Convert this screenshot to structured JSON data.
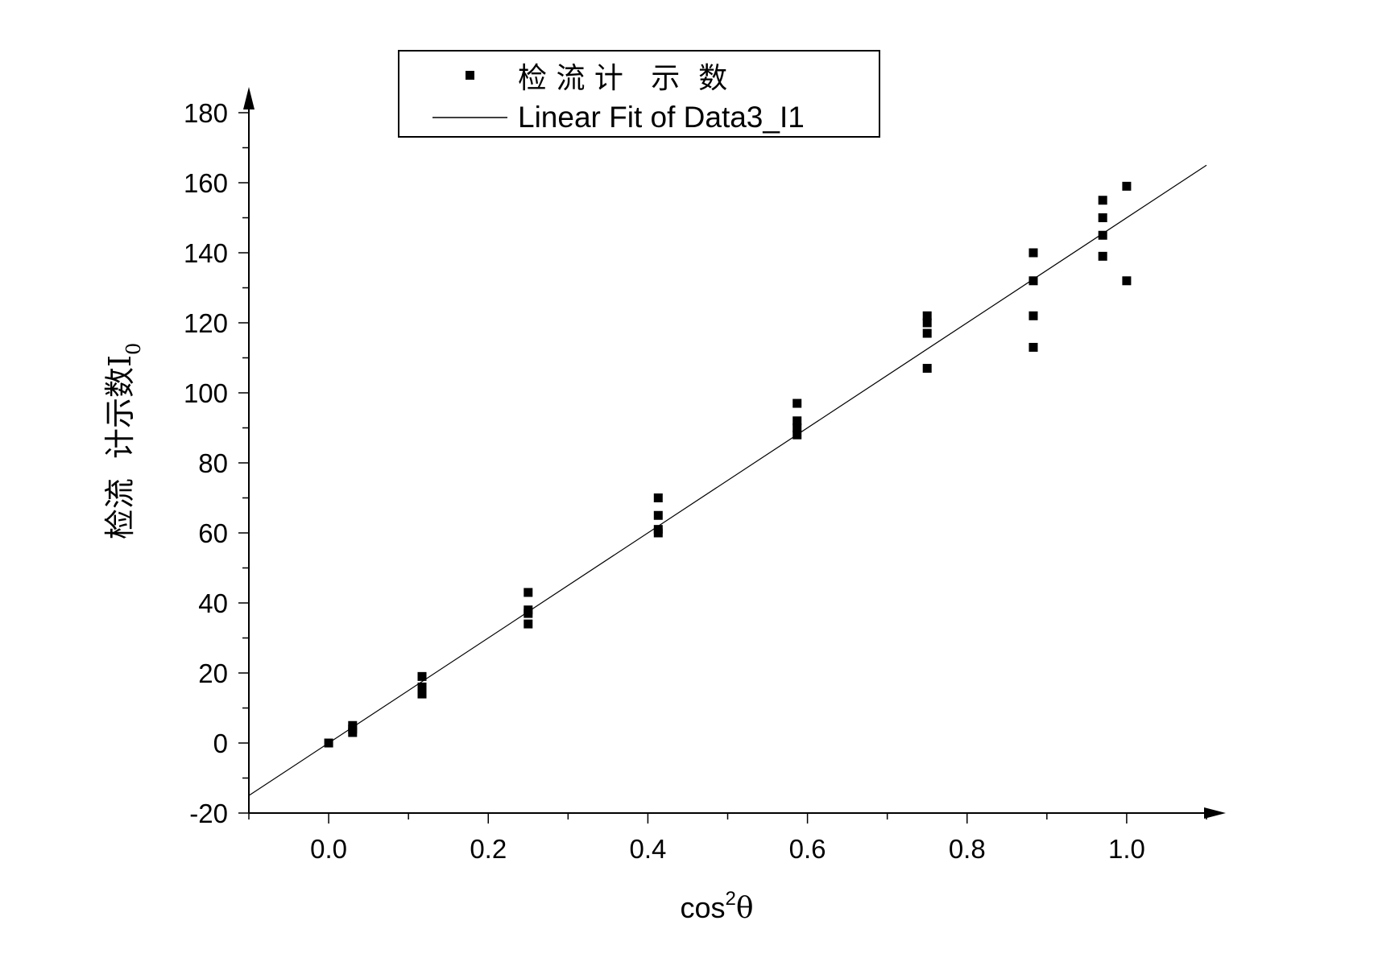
{
  "chart_data": {
    "type": "scatter",
    "xlabel": {
      "base": "cos",
      "sup": "2",
      "after": "θ"
    },
    "ylabel": {
      "text": "检流  计示数I",
      "sub": "0"
    },
    "xlim": [
      -0.1,
      1.1
    ],
    "ylim": [
      -20,
      180
    ],
    "xticks": [
      0.0,
      0.2,
      0.4,
      0.6,
      0.8,
      1.0
    ],
    "xtick_labels": [
      "0.0",
      "0.2",
      "0.4",
      "0.6",
      "0.8",
      "1.0"
    ],
    "x_minor_step": 0.1,
    "yticks": [
      -20,
      0,
      20,
      40,
      60,
      80,
      100,
      120,
      140,
      160,
      180
    ],
    "ytick_labels": [
      "-20",
      "0",
      "20",
      "40",
      "60",
      "80",
      "100",
      "120",
      "140",
      "160",
      "180"
    ],
    "y_minor_step": 10,
    "grid": false,
    "legend": {
      "position": "top-center",
      "entries": [
        {
          "label": "检 流 计   示  数",
          "symbol": "square"
        },
        {
          "label": "Linear Fit of Data3_I1",
          "symbol": "line"
        }
      ]
    },
    "series": [
      {
        "name": "检 流 计   示  数",
        "kind": "scatter",
        "color": "#000000",
        "points": [
          [
            0.0,
            0
          ],
          [
            0.03,
            3
          ],
          [
            0.03,
            4
          ],
          [
            0.03,
            5
          ],
          [
            0.117,
            14
          ],
          [
            0.117,
            16
          ],
          [
            0.117,
            19
          ],
          [
            0.25,
            34
          ],
          [
            0.25,
            37
          ],
          [
            0.25,
            38
          ],
          [
            0.25,
            43
          ],
          [
            0.413,
            60
          ],
          [
            0.413,
            61
          ],
          [
            0.413,
            65
          ],
          [
            0.413,
            70
          ],
          [
            0.587,
            88
          ],
          [
            0.587,
            90
          ],
          [
            0.587,
            92
          ],
          [
            0.587,
            97
          ],
          [
            0.75,
            107
          ],
          [
            0.75,
            117
          ],
          [
            0.75,
            120
          ],
          [
            0.75,
            122
          ],
          [
            0.883,
            113
          ],
          [
            0.883,
            122
          ],
          [
            0.883,
            132
          ],
          [
            0.883,
            140
          ],
          [
            0.97,
            139
          ],
          [
            0.97,
            145
          ],
          [
            0.97,
            150
          ],
          [
            0.97,
            155
          ],
          [
            1.0,
            132
          ],
          [
            1.0,
            159
          ]
        ]
      },
      {
        "name": "Linear Fit of Data3_I1",
        "kind": "line",
        "color": "#000000",
        "x": [
          -0.1,
          1.1
        ],
        "y": [
          -15,
          165
        ]
      }
    ]
  }
}
